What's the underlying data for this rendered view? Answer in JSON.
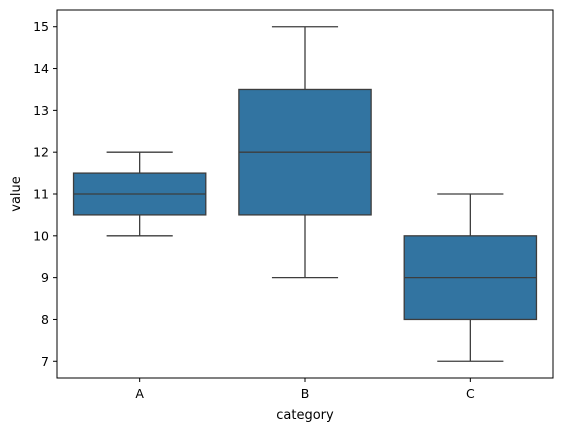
{
  "chart_data": {
    "type": "box",
    "xlabel": "category",
    "ylabel": "value",
    "ylim": [
      6.6,
      15.4
    ],
    "yticks": [
      7,
      8,
      9,
      10,
      11,
      12,
      13,
      14,
      15
    ],
    "grid": false,
    "box_color": "#3274a1",
    "line_color": "#3d3d3d",
    "categories": [
      "A",
      "B",
      "C"
    ],
    "boxes": [
      {
        "category": "A",
        "whisker_low": 10,
        "q1": 10.5,
        "median": 11,
        "q3": 11.5,
        "whisker_high": 12
      },
      {
        "category": "B",
        "whisker_low": 9,
        "q1": 10.5,
        "median": 12,
        "q3": 13.5,
        "whisker_high": 15
      },
      {
        "category": "C",
        "whisker_low": 7,
        "q1": 8,
        "median": 9,
        "q3": 10,
        "whisker_high": 11
      }
    ]
  }
}
